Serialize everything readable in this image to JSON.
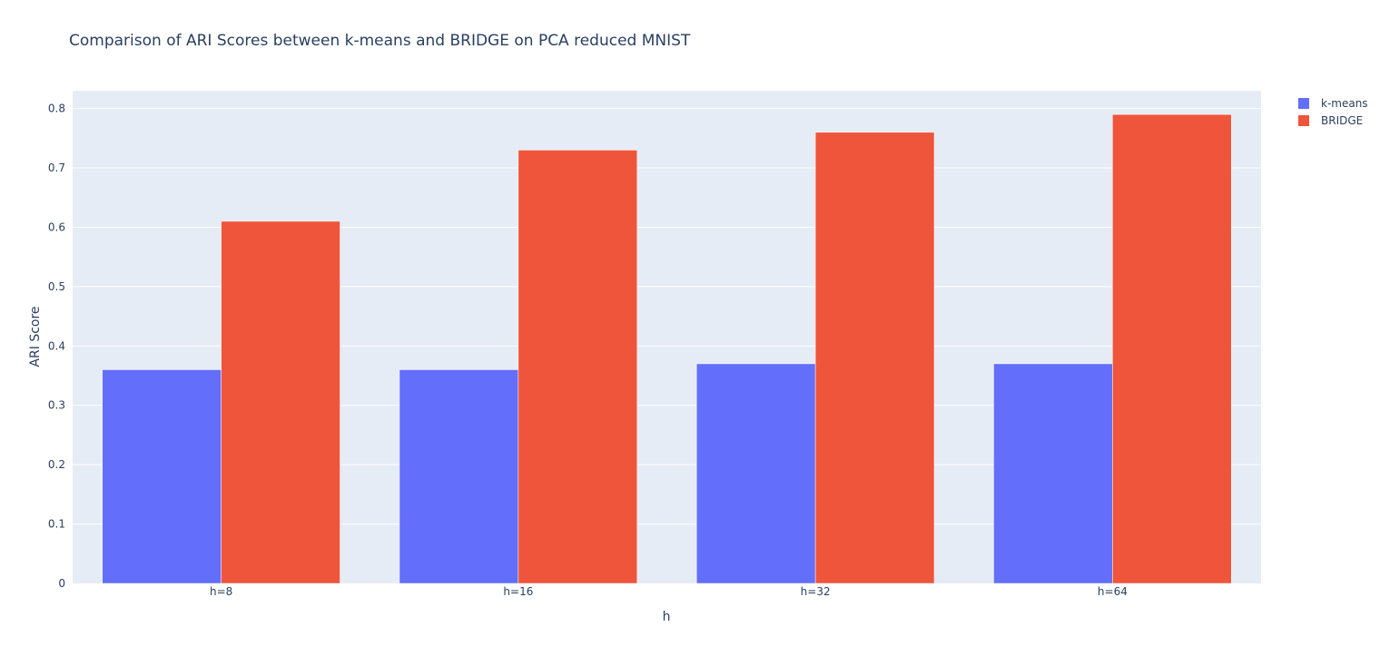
{
  "chart_data": {
    "type": "bar",
    "title": "Comparison of ARI Scores between k-means and BRIDGE on PCA reduced MNIST",
    "xlabel": "h",
    "ylabel": "ARI Score",
    "categories": [
      "h=8",
      "h=16",
      "h=32",
      "h=64"
    ],
    "series": [
      {
        "name": "k-means",
        "values": [
          0.36,
          0.36,
          0.37,
          0.37
        ],
        "color": "#636efa"
      },
      {
        "name": "BRIDGE",
        "values": [
          0.61,
          0.73,
          0.76,
          0.79
        ],
        "color": "#ef553b"
      }
    ],
    "ylim": [
      0,
      0.83
    ],
    "yticks": [
      0,
      0.1,
      0.2,
      0.3,
      0.4,
      0.5,
      0.6,
      0.7,
      0.8
    ],
    "ytick_labels": [
      "0",
      "0.1",
      "0.2",
      "0.3",
      "0.4",
      "0.5",
      "0.6",
      "0.7",
      "0.8"
    ],
    "grid": true,
    "legend": "top-right",
    "plot_background": "#e5ecf6",
    "grid_color": "#ffffff"
  }
}
